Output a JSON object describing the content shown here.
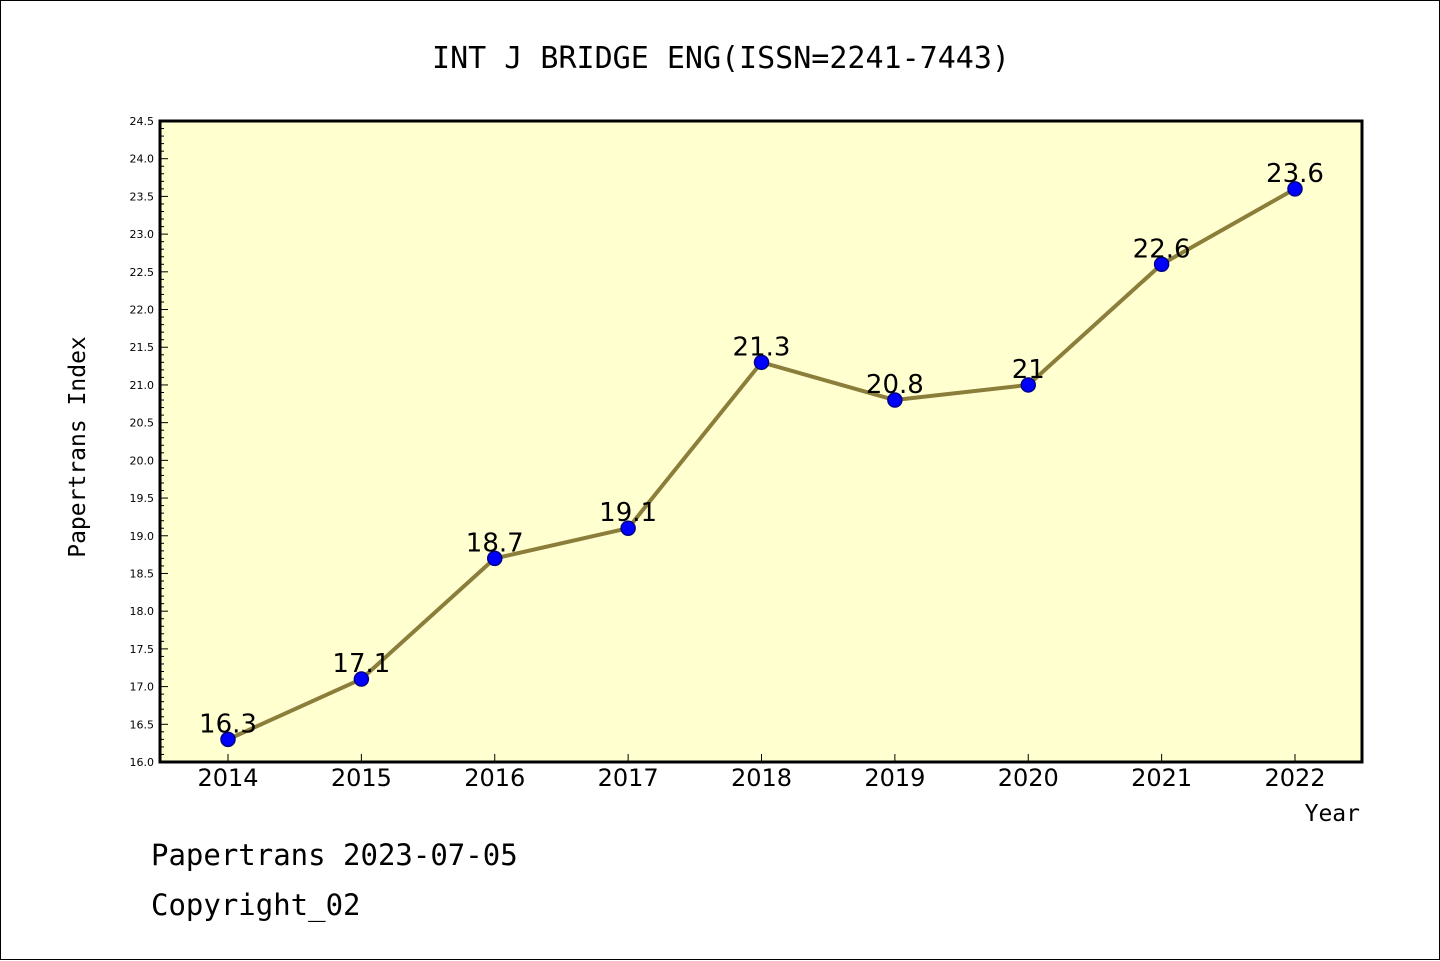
{
  "chart_data": {
    "type": "line",
    "title": "INT J BRIDGE ENG(ISSN=2241-7443)",
    "xlabel": "Year",
    "ylabel": "Papertrans Index",
    "categories": [
      "2014",
      "2015",
      "2016",
      "2017",
      "2018",
      "2019",
      "2020",
      "2021",
      "2022"
    ],
    "series": [
      {
        "values": [
          16.3,
          17.1,
          18.7,
          19.1,
          21.3,
          20.8,
          21.0,
          22.6,
          23.6
        ],
        "data_labels": [
          "16.3",
          "17.1",
          "18.7",
          "19.1",
          "21.3",
          "20.8",
          "21",
          "22.6",
          "23.6"
        ]
      }
    ],
    "ylim": [
      16.0,
      24.5
    ],
    "yticks": [
      "16.0",
      "16.5",
      "17.0",
      "17.5",
      "18.0",
      "18.5",
      "19.0",
      "19.5",
      "20.0",
      "20.5",
      "21.0",
      "21.5",
      "22.0",
      "22.5",
      "23.0",
      "23.5",
      "24.0",
      "24.5"
    ],
    "grid": false,
    "colors": {
      "plot_background": "#ffffd0",
      "line": "#8b7d3a",
      "marker_fill": "#0000ff",
      "marker_stroke": "#00008b"
    }
  },
  "footer": {
    "line1": "Papertrans 2023-07-05",
    "line2": "Copyright_02"
  }
}
